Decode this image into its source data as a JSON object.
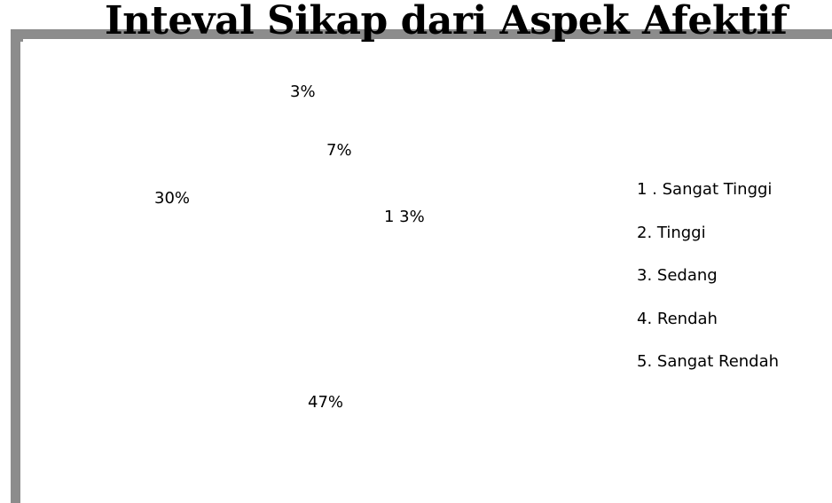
{
  "chart_data": {
    "type": "pie",
    "title": "Inteval Sikap dari Aspek Afektif",
    "categories": [
      "1. Sangat Tinggi",
      "2. Tinggi",
      "3. Sedang",
      "4. Rendah",
      "5. Sangat Rendah"
    ],
    "values": [
      3,
      7,
      13,
      47,
      30
    ],
    "data_labels": [
      "3%",
      "7%",
      "1 3%",
      "47%",
      "30%"
    ],
    "slice_fill": "#ffffff",
    "legend_position": "right",
    "grid": false
  },
  "legend": {
    "items": [
      {
        "label": "1 . Sangat Tinggi"
      },
      {
        "label": "2. Tinggi"
      },
      {
        "label": "3. Sedang"
      },
      {
        "label": "4. Rendah"
      },
      {
        "label": "5. Sangat Rendah"
      }
    ]
  }
}
